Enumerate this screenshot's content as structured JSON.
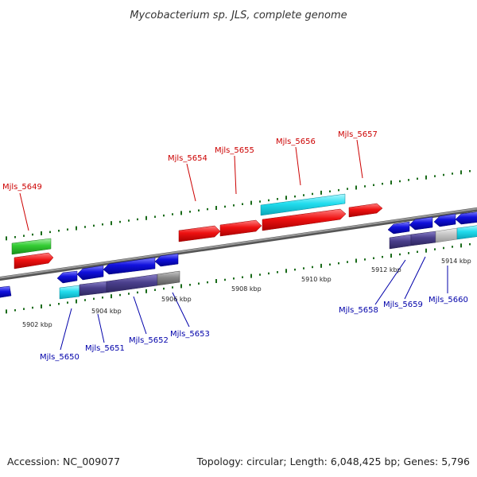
{
  "title": "Mycobacterium sp. JLS, complete genome",
  "footer": {
    "accession": "Accession: NC_009077",
    "summary": "Topology: circular; Length: 6,048,425 bp; Genes: 5,796"
  },
  "colors": {
    "forward_label": "#cc0000",
    "reverse_label": "#0000aa",
    "red_gene": "#ee1111",
    "blue_gene": "#1111dd",
    "cyan_gene": "#22ddee",
    "green_gene": "#33cc33",
    "purple_gene": "#4a3f8c",
    "gray_gene": "#888888",
    "backbone": "#808080",
    "tick": "#1a6b1a"
  },
  "scale_labels": [
    "5902 kbp",
    "5904 kbp",
    "5906 kbp",
    "5908 kbp",
    "5910 kbp",
    "5912 kbp",
    "5914 kbp"
  ],
  "forward_genes": [
    "Mjls_5649",
    "Mjls_5654",
    "Mjls_5655",
    "Mjls_5656",
    "Mjls_5657"
  ],
  "reverse_genes": [
    "Mjls_5650",
    "Mjls_5651",
    "Mjls_5652",
    "Mjls_5653",
    "Mjls_5658",
    "Mjls_5659",
    "Mjls_5660"
  ]
}
